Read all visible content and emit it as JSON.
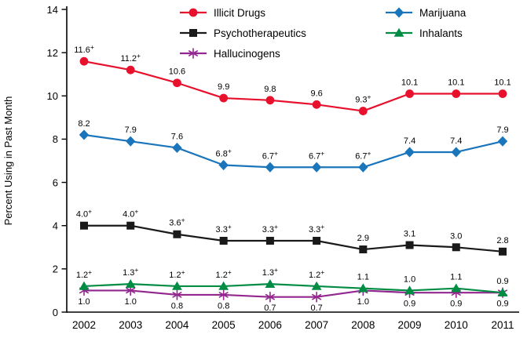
{
  "chart_data": {
    "type": "line",
    "title": "",
    "xlabel": "",
    "ylabel": "Percent Using in Past Month",
    "x": [
      "2002",
      "2003",
      "2004",
      "2005",
      "2006",
      "2007",
      "2008",
      "2009",
      "2010",
      "2011"
    ],
    "ylim": [
      0,
      14
    ],
    "yticks": [
      0,
      2,
      4,
      6,
      8,
      10,
      12,
      14
    ],
    "grid": false,
    "legend_position": "top",
    "significance_marker": "+",
    "series": [
      {
        "name": "Illicit Drugs",
        "color": "#e8112d",
        "marker": "circle",
        "label_side": "above",
        "legend_col": 0,
        "legend_row": 0,
        "values": [
          11.6,
          11.2,
          10.6,
          9.9,
          9.8,
          9.6,
          9.3,
          10.1,
          10.1,
          10.1
        ],
        "labels": [
          "11.6+",
          "11.2+",
          "10.6",
          "9.9",
          "9.8",
          "9.6",
          "9.3+",
          "10.1",
          "10.1",
          "10.1"
        ]
      },
      {
        "name": "Marijuana",
        "color": "#1b75bb",
        "marker": "diamond",
        "label_side": "above",
        "legend_col": 1,
        "legend_row": 0,
        "values": [
          8.2,
          7.9,
          7.6,
          6.8,
          6.7,
          6.7,
          6.7,
          7.4,
          7.4,
          7.9
        ],
        "labels": [
          "8.2",
          "7.9",
          "7.6",
          "6.8+",
          "6.7+",
          "6.7+",
          "6.7+",
          "7.4",
          "7.4",
          "7.9"
        ]
      },
      {
        "name": "Psychotherapeutics",
        "color": "#1a1a1a",
        "marker": "square",
        "label_side": "above",
        "legend_col": 0,
        "legend_row": 1,
        "values": [
          4.0,
          4.0,
          3.6,
          3.3,
          3.3,
          3.3,
          2.9,
          3.1,
          3.0,
          2.8
        ],
        "labels": [
          "4.0+",
          "4.0+",
          "3.6+",
          "3.3+",
          "3.3+",
          "3.3+",
          "2.9",
          "3.1",
          "3.0",
          "2.8"
        ]
      },
      {
        "name": "Hallucinogens",
        "color": "#93278f",
        "marker": "asterisk",
        "label_side": "below",
        "legend_col": 0,
        "legend_row": 2,
        "values": [
          1.0,
          1.0,
          0.8,
          0.8,
          0.7,
          0.7,
          1.0,
          0.9,
          0.9,
          0.9
        ],
        "labels": [
          "1.0",
          "1.0",
          "0.8",
          "0.8",
          "0.7",
          "0.7",
          "1.0",
          "0.9",
          "0.9",
          "0.9"
        ]
      },
      {
        "name": "Inhalants",
        "color": "#008c43",
        "marker": "triangle",
        "label_side": "above",
        "legend_col": 1,
        "legend_row": 1,
        "values": [
          1.2,
          1.3,
          1.2,
          1.2,
          1.3,
          1.2,
          1.1,
          1.0,
          1.1,
          0.9
        ],
        "labels": [
          "1.2+",
          "1.3+",
          "1.2+",
          "1.2+",
          "1.3+",
          "1.2+",
          "1.1",
          "1.0",
          "1.1",
          "0.9"
        ]
      }
    ]
  }
}
